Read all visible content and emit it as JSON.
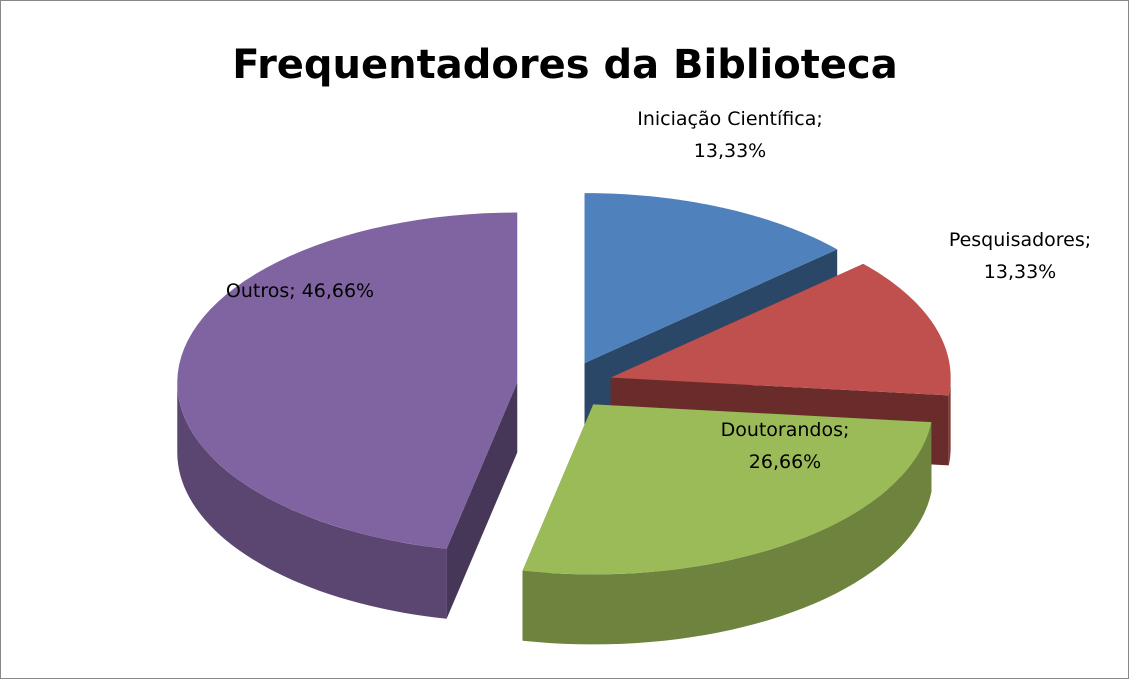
{
  "chart_data": {
    "type": "pie",
    "title": "Frequentadores da Biblioteca",
    "categories": [
      "Iniciação Científica",
      "Pesquisadores",
      "Doutorandos",
      "Outros"
    ],
    "values": [
      13.33,
      13.33,
      26.66,
      46.66
    ],
    "value_labels": [
      "13,33%",
      "13,33%",
      "26,66%",
      "46,66%"
    ],
    "label_separator": ";",
    "colors": [
      "#4f81bd",
      "#c0504d",
      "#9bbb59",
      "#8064a2"
    ]
  }
}
